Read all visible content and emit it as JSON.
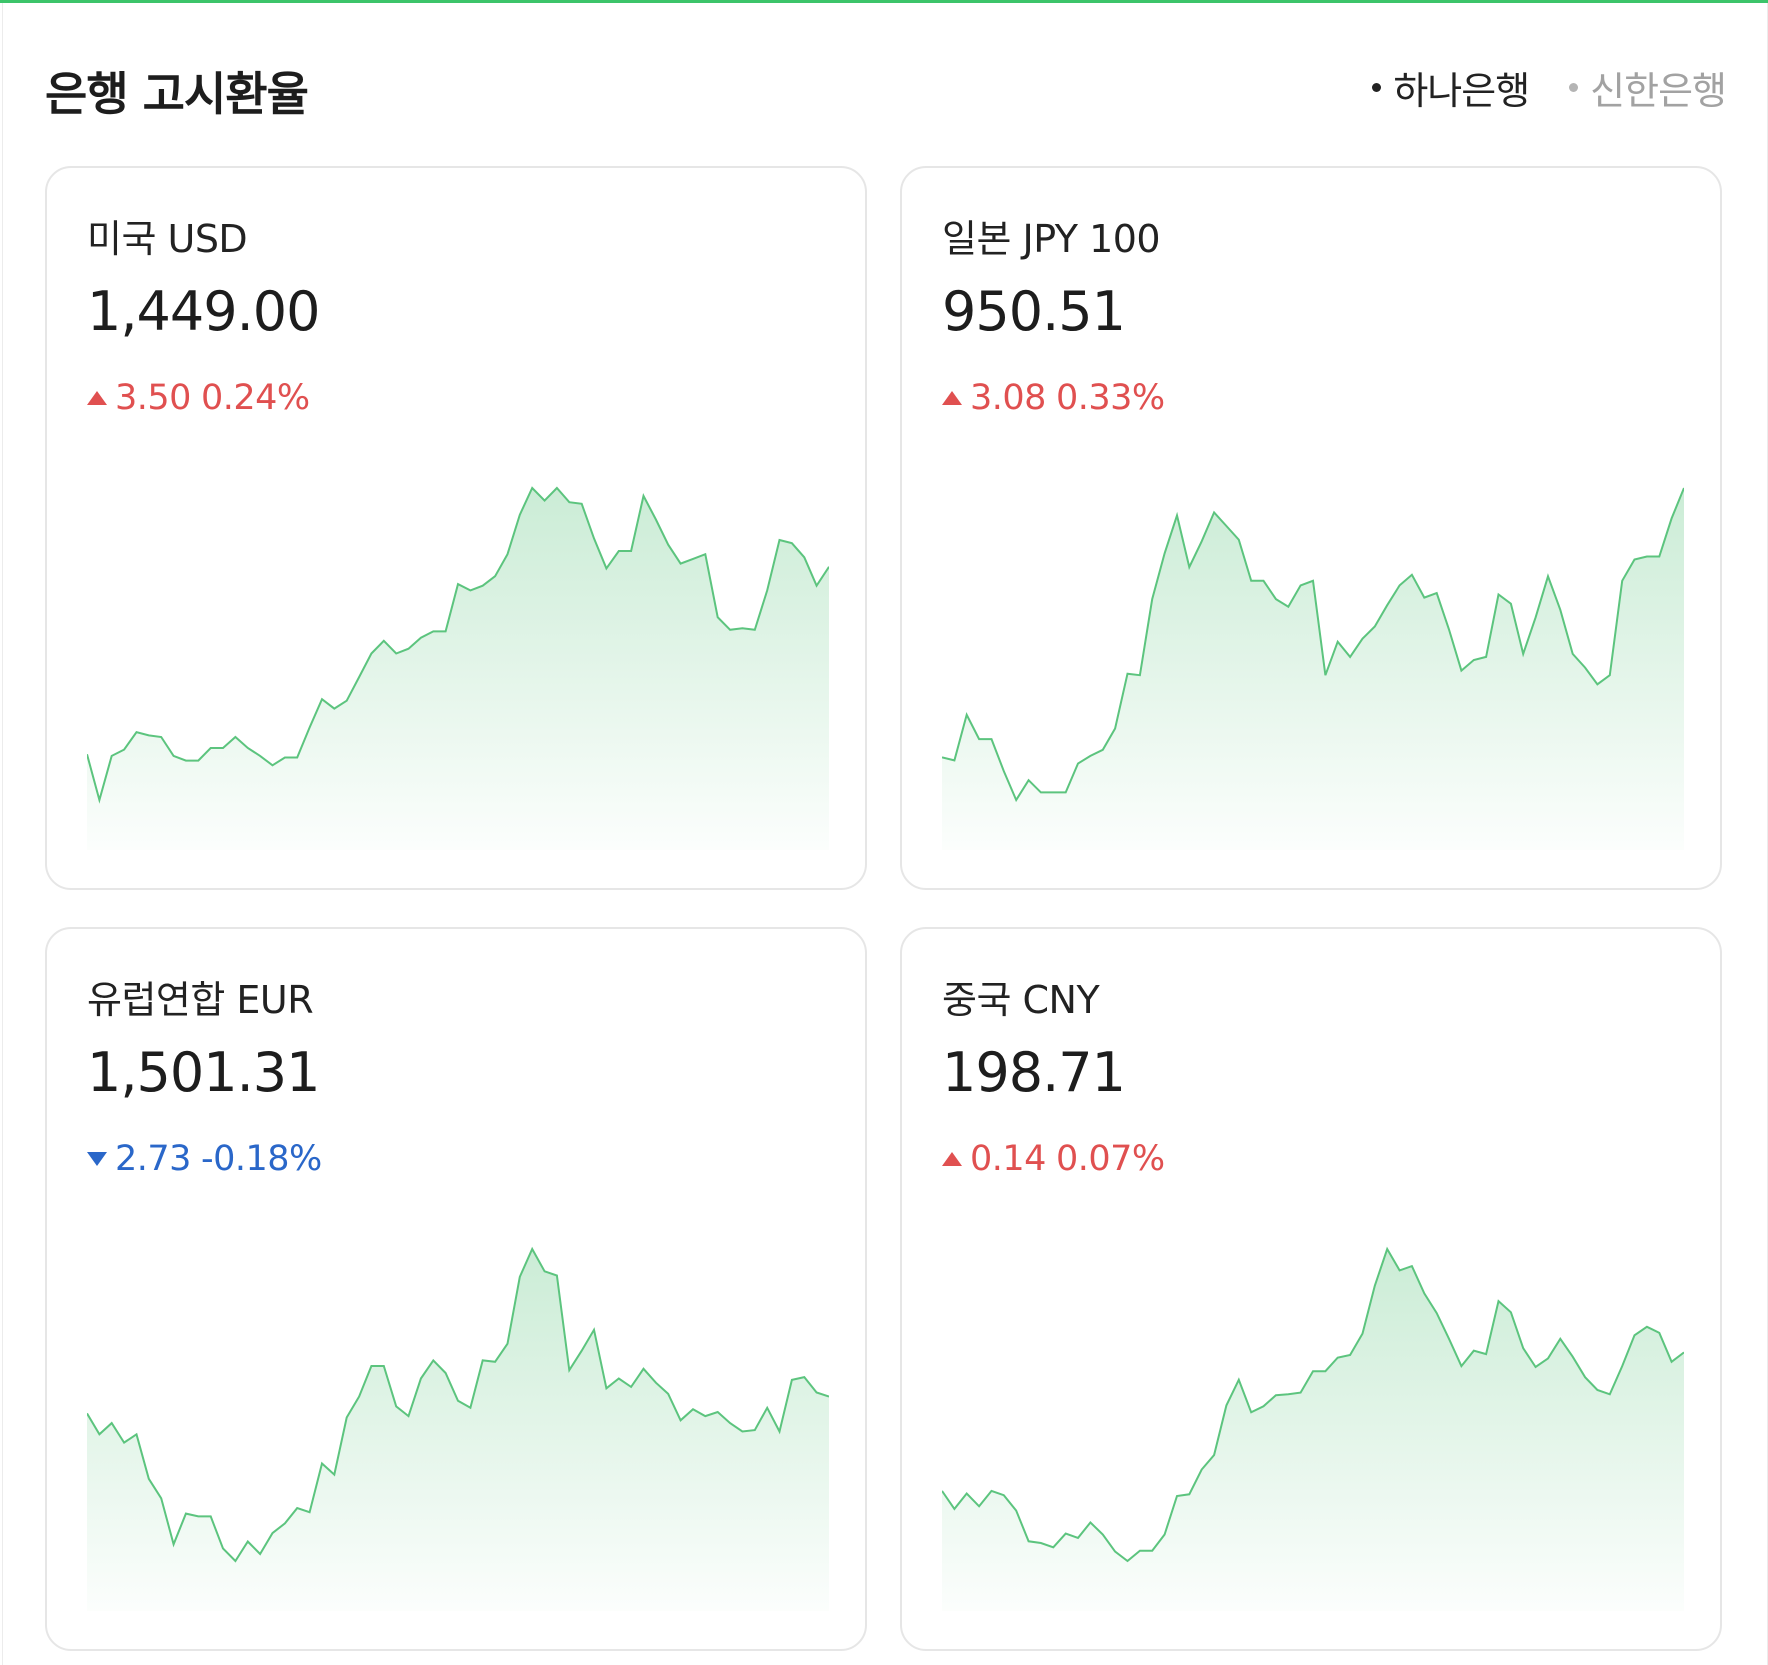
{
  "header": {
    "title": "은행 고시환율",
    "banks": [
      {
        "label": "하나은행",
        "active": true
      },
      {
        "label": "신한은행",
        "active": false
      }
    ]
  },
  "colors": {
    "up": "#e05050",
    "down": "#2a67c9",
    "line": "#5cc47e",
    "accent": "#3cc46a"
  },
  "cards": [
    {
      "name": "미국 USD",
      "rate": "1,449.00",
      "direction": "up",
      "change": "3.50",
      "percent": "0.24%",
      "series": [
        1427.4,
        1424.5,
        1427.3,
        1427.7,
        1428.8,
        1428.6,
        1428.5,
        1427.3,
        1427.0,
        1427.0,
        1427.8,
        1427.8,
        1428.5,
        1427.8,
        1427.3,
        1426.7,
        1427.2,
        1427.2,
        1429.1,
        1430.9,
        1430.3,
        1430.8,
        1432.3,
        1433.8,
        1434.6,
        1433.8,
        1434.1,
        1434.8,
        1435.2,
        1435.2,
        1438.2,
        1437.8,
        1438.1,
        1438.7,
        1440.1,
        1442.6,
        1444.3,
        1443.5,
        1444.3,
        1443.4,
        1443.3,
        1441.1,
        1439.2,
        1440.3,
        1440.3,
        1443.8,
        1442.3,
        1440.7,
        1439.5,
        1439.8,
        1440.1,
        1436.1,
        1435.3,
        1435.4,
        1435.3,
        1437.8,
        1441.0,
        1440.8,
        1439.9,
        1438.1,
        1439.3
      ]
    },
    {
      "name": "일본 JPY 100",
      "rate": "950.51",
      "direction": "up",
      "change": "3.08",
      "percent": "0.33%",
      "series": [
        936.1,
        935.9,
        938.9,
        937.3,
        937.3,
        935.2,
        933.3,
        934.6,
        933.8,
        933.8,
        933.8,
        935.7,
        936.2,
        936.6,
        938.0,
        941.6,
        941.5,
        946.5,
        949.5,
        952.0,
        948.6,
        950.3,
        952.2,
        951.3,
        950.4,
        947.7,
        947.7,
        946.5,
        946.0,
        947.4,
        947.7,
        941.5,
        943.7,
        942.7,
        943.9,
        944.7,
        946.1,
        947.4,
        948.1,
        946.6,
        946.9,
        944.5,
        941.8,
        942.5,
        942.7,
        946.8,
        946.2,
        942.9,
        945.3,
        948.0,
        945.8,
        942.9,
        942.0,
        940.9,
        941.5,
        947.7,
        949.1,
        949.3,
        949.3,
        951.8,
        953.8
      ]
    },
    {
      "name": "유럽연합 EUR",
      "rate": "1,501.31",
      "direction": "down",
      "change": "2.73",
      "percent": "-0.18%",
      "series": [
        1494.3,
        1492.8,
        1493.6,
        1492.2,
        1492.8,
        1489.6,
        1488.2,
        1484.9,
        1487.1,
        1486.9,
        1486.9,
        1484.6,
        1483.7,
        1485.1,
        1484.2,
        1485.7,
        1486.4,
        1487.5,
        1487.2,
        1490.7,
        1489.9,
        1494.0,
        1495.5,
        1497.7,
        1497.7,
        1494.8,
        1494.1,
        1496.8,
        1498.1,
        1497.2,
        1495.2,
        1494.7,
        1498.1,
        1498.0,
        1499.3,
        1504.1,
        1506.1,
        1504.5,
        1504.2,
        1497.4,
        1498.8,
        1500.3,
        1496.1,
        1496.8,
        1496.2,
        1497.5,
        1496.5,
        1495.7,
        1493.8,
        1494.6,
        1494.1,
        1494.4,
        1493.6,
        1493.0,
        1493.1,
        1494.7,
        1493.0,
        1496.7,
        1496.9,
        1495.8,
        1495.5
      ]
    },
    {
      "name": "중국 CNY",
      "rate": "198.71",
      "direction": "up",
      "change": "0.14",
      "percent": "0.07%",
      "series": [
        196.94,
        196.73,
        196.91,
        196.76,
        196.94,
        196.89,
        196.71,
        196.35,
        196.33,
        196.28,
        196.44,
        196.39,
        196.57,
        196.43,
        196.23,
        196.12,
        196.24,
        196.24,
        196.43,
        196.88,
        196.9,
        197.19,
        197.36,
        197.94,
        198.24,
        197.86,
        197.93,
        198.06,
        198.07,
        198.09,
        198.34,
        198.34,
        198.5,
        198.53,
        198.78,
        199.34,
        199.77,
        199.52,
        199.57,
        199.25,
        199.02,
        198.72,
        198.4,
        198.58,
        198.54,
        199.16,
        199.03,
        198.61,
        198.39,
        198.49,
        198.72,
        198.51,
        198.27,
        198.12,
        198.07,
        198.4,
        198.76,
        198.86,
        198.79,
        198.45,
        198.56
      ]
    }
  ]
}
